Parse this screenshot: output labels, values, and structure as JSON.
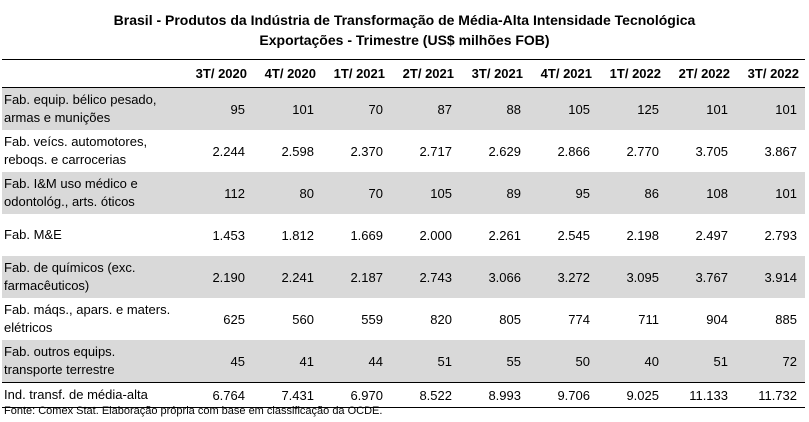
{
  "title": {
    "line1": "Brasil - Produtos da Indústria de Transformação de Média-Alta Intensidade Tecnológica",
    "line2": "Exportações - Trimestre (US$ milhões FOB)"
  },
  "table": {
    "columns": [
      "3T/ 2020",
      "4T/ 2020",
      "1T/ 2021",
      "2T/ 2021",
      "3T/ 2021",
      "4T/ 2021",
      "1T/ 2022",
      "2T/ 2022",
      "3T/ 2022"
    ],
    "rows": [
      {
        "label": "Fab. equip. bélico pesado, armas e munições",
        "values": [
          "95",
          "101",
          "70",
          "87",
          "88",
          "105",
          "125",
          "101",
          "101"
        ]
      },
      {
        "label": "Fab. veícs. automotores, reboqs. e carrocerias",
        "values": [
          "2.244",
          "2.598",
          "2.370",
          "2.717",
          "2.629",
          "2.866",
          "2.770",
          "3.705",
          "3.867"
        ]
      },
      {
        "label": "Fab. I&M uso médico e odontológ., arts. óticos",
        "values": [
          "112",
          "80",
          "70",
          "105",
          "89",
          "95",
          "86",
          "108",
          "101"
        ]
      },
      {
        "label": "Fab. M&E",
        "values": [
          "1.453",
          "1.812",
          "1.669",
          "2.000",
          "2.261",
          "2.545",
          "2.198",
          "2.497",
          "2.793"
        ]
      },
      {
        "label": "Fab. de químicos (exc. farmacêuticos)",
        "values": [
          "2.190",
          "2.241",
          "2.187",
          "2.743",
          "3.066",
          "3.272",
          "3.095",
          "3.767",
          "3.914"
        ]
      },
      {
        "label": "Fab. máqs., apars. e maters. elétricos",
        "values": [
          "625",
          "560",
          "559",
          "820",
          "805",
          "774",
          "711",
          "904",
          "885"
        ]
      },
      {
        "label": "Fab. outros equips. transporte terrestre",
        "values": [
          "45",
          "41",
          "44",
          "51",
          "55",
          "50",
          "40",
          "51",
          "72"
        ]
      }
    ],
    "total": {
      "label": "Ind. transf. de média-alta",
      "values": [
        "6.764",
        "7.431",
        "6.970",
        "8.522",
        "8.993",
        "9.706",
        "9.025",
        "11.133",
        "11.732"
      ]
    }
  },
  "source": "Fonte: Comex Stat. Elaboração própria com base em classificação da OCDE."
}
